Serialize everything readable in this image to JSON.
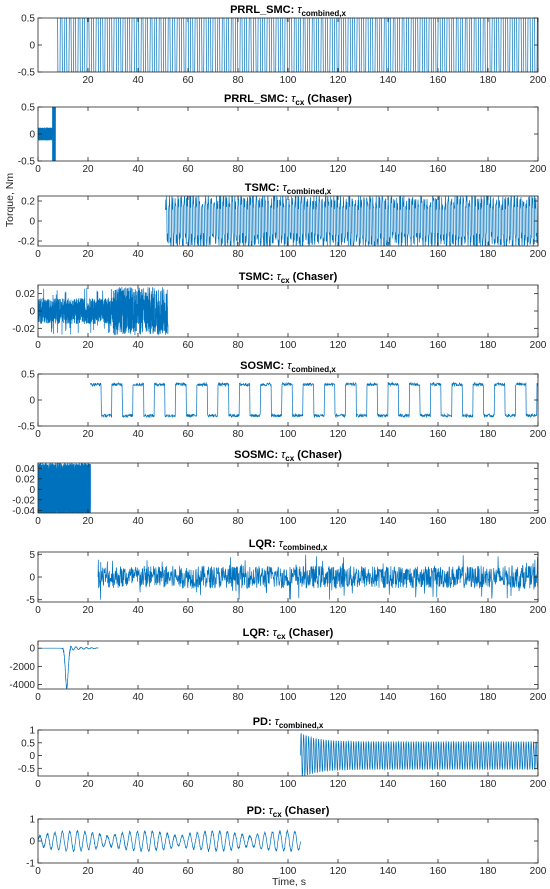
{
  "figure": {
    "xlabel": "Time, s",
    "ylabel": "Torque, Nm",
    "line_color": "#0072BD"
  },
  "chart_data": [
    {
      "type": "line",
      "title": "PRRL_SMC: τcombined,x",
      "title_main": "PRRL_SMC: ",
      "title_sub": "combined,x",
      "title_suffix": "",
      "xlim": [
        0,
        200
      ],
      "ylim": [
        -0.5,
        0.5
      ],
      "xticks": [
        20,
        40,
        60,
        80,
        100,
        120,
        140,
        160,
        180,
        200
      ],
      "yticks": [
        -0.5,
        0,
        0.5
      ],
      "ytick_labels": [
        "-0.5",
        "0",
        "0.5"
      ],
      "series": [
        {
          "x_start": 7,
          "x_end": 200,
          "pattern": "square",
          "amplitude": 0.5,
          "period": 1.8,
          "jitter": 0.0
        }
      ]
    },
    {
      "type": "line",
      "title": "PRRL_SMC: τcx (Chaser)",
      "title_main": "PRRL_SMC: ",
      "title_sub": "cx",
      "title_suffix": " (Chaser)",
      "xlim": [
        0,
        200
      ],
      "ylim": [
        -0.5,
        0.5
      ],
      "xticks": [
        0,
        20,
        40,
        60,
        80,
        100,
        120,
        140,
        160,
        180,
        200
      ],
      "yticks": [
        -0.5,
        0,
        0.5
      ],
      "ytick_labels": [
        "-0.5",
        "0",
        "0.5"
      ],
      "series": [
        {
          "x_start": 0,
          "x_end": 7,
          "pattern": "noise",
          "amplitude": 0.12,
          "period": 0.4,
          "burst_end": 0.5
        }
      ]
    },
    {
      "type": "line",
      "title": "TSMC: τcombined,x",
      "title_main": "TSMC: ",
      "title_sub": "combined,x",
      "title_suffix": "",
      "xlim": [
        0,
        200
      ],
      "ylim": [
        -0.25,
        0.25
      ],
      "xticks": [
        0,
        20,
        40,
        60,
        80,
        100,
        120,
        140,
        160,
        180,
        200
      ],
      "yticks": [
        -0.2,
        0,
        0.2
      ],
      "ytick_labels": [
        "-0.2",
        "0",
        "0.2"
      ],
      "series": [
        {
          "x_start": 51,
          "x_end": 200,
          "pattern": "square",
          "amplitude": 0.19,
          "period": 1.2,
          "jitter": 0.08
        }
      ]
    },
    {
      "type": "line",
      "title": "TSMC: τcx (Chaser)",
      "title_main": "TSMC: ",
      "title_sub": "cx",
      "title_suffix": " (Chaser)",
      "xlim": [
        0,
        200
      ],
      "ylim": [
        -0.03,
        0.03
      ],
      "xticks": [
        0,
        20,
        40,
        60,
        80,
        100,
        120,
        140,
        160,
        180,
        200
      ],
      "yticks": [
        -0.02,
        0,
        0.02
      ],
      "ytick_labels": [
        "-0.02",
        "0",
        "0.02"
      ],
      "series": [
        {
          "x_start": 0,
          "x_end": 52,
          "pattern": "noise",
          "amplitude": 0.015,
          "period": 0.2,
          "burst_start": 30,
          "burst_amp": 0.028
        }
      ]
    },
    {
      "type": "line",
      "title": "SOSMC: τcombined,x",
      "title_main": "SOSMC: ",
      "title_sub": "combined,x",
      "title_suffix": "",
      "xlim": [
        0,
        200
      ],
      "ylim": [
        -0.5,
        0.5
      ],
      "xticks": [
        0,
        20,
        40,
        60,
        80,
        100,
        120,
        140,
        160,
        180,
        200
      ],
      "yticks": [
        -0.5,
        0,
        0.5
      ],
      "ytick_labels": [
        "-0.5",
        "0",
        "0.5"
      ],
      "series": [
        {
          "x_start": 21,
          "x_end": 200,
          "pattern": "square",
          "amplitude": 0.3,
          "period": 8.5,
          "jitter": 0.03
        }
      ]
    },
    {
      "type": "line",
      "title": "SOSMC: τcx (Chaser)",
      "title_main": "SOSMC: ",
      "title_sub": "cx",
      "title_suffix": " (Chaser)",
      "xlim": [
        0,
        200
      ],
      "ylim": [
        -0.045,
        0.05
      ],
      "xticks": [
        0,
        20,
        40,
        60,
        80,
        100,
        120,
        140,
        160,
        180,
        200
      ],
      "yticks": [
        -0.04,
        -0.02,
        0,
        0.02,
        0.04
      ],
      "ytick_labels": [
        "-0.04",
        "-0.02",
        "0",
        "0.02",
        "0.04"
      ],
      "series": [
        {
          "x_start": 0,
          "x_end": 21,
          "pattern": "square",
          "amplitude": 0.04,
          "period": 0.35,
          "jitter": 0.01
        }
      ]
    },
    {
      "type": "line",
      "title": "LQR: τcombined,x",
      "title_main": "LQR: ",
      "title_sub": "combined,x",
      "title_suffix": "",
      "xlim": [
        0,
        200
      ],
      "ylim": [
        -5.5,
        5.5
      ],
      "xticks": [
        0,
        20,
        40,
        60,
        80,
        100,
        120,
        140,
        160,
        180,
        200
      ],
      "yticks": [
        -5,
        0,
        5
      ],
      "ytick_labels": [
        "-5",
        "0",
        "5"
      ],
      "series": [
        {
          "x_start": 24,
          "x_end": 200,
          "pattern": "noise",
          "amplitude": 2.5,
          "period": 0.25,
          "burst_amp": 5
        }
      ]
    },
    {
      "type": "line",
      "title": "LQR: τcx (Chaser)",
      "title_main": "LQR: ",
      "title_sub": "cx",
      "title_suffix": " (Chaser)",
      "xlim": [
        0,
        200
      ],
      "ylim": [
        -4500,
        800
      ],
      "xticks": [
        0,
        20,
        40,
        60,
        80,
        100,
        120,
        140,
        160,
        180,
        200
      ],
      "yticks": [
        -4000,
        -2000,
        0
      ],
      "ytick_labels": [
        "-4000",
        "-2000",
        "0"
      ],
      "series": [
        {
          "x_start": 0,
          "x_end": 24,
          "pattern": "spike",
          "amplitude": 4400,
          "spike_at": 11.5
        }
      ]
    },
    {
      "type": "line",
      "title": "PD: τcombined,x",
      "title_main": "PD: ",
      "title_sub": "combined,x",
      "title_suffix": "",
      "xlim": [
        0,
        200
      ],
      "ylim": [
        -0.8,
        1.0
      ],
      "xticks": [
        0,
        20,
        40,
        60,
        80,
        100,
        120,
        140,
        160,
        180,
        200
      ],
      "yticks": [
        -0.5,
        0,
        0.5,
        1
      ],
      "ytick_labels": [
        "-0.5",
        "0",
        "0.5",
        "1"
      ],
      "series": [
        {
          "x_start": 105,
          "x_end": 200,
          "pattern": "decay",
          "amplitude": 0.9,
          "period": 1.0,
          "floor": 0.55
        }
      ]
    },
    {
      "type": "line",
      "title": "PD: τcx (Chaser)",
      "title_main": "PD: ",
      "title_sub": "cx",
      "title_suffix": " (Chaser)",
      "xlim": [
        0,
        200
      ],
      "ylim": [
        -1,
        1
      ],
      "xticks": [
        0,
        20,
        40,
        60,
        80,
        100,
        120,
        140,
        160,
        180,
        200
      ],
      "yticks": [
        -1,
        0,
        1
      ],
      "ytick_labels": [
        "-1",
        "0",
        "1"
      ],
      "series": [
        {
          "x_start": 0,
          "x_end": 105,
          "pattern": "sine",
          "amplitude": 0.45,
          "period": 3.0
        }
      ]
    }
  ]
}
